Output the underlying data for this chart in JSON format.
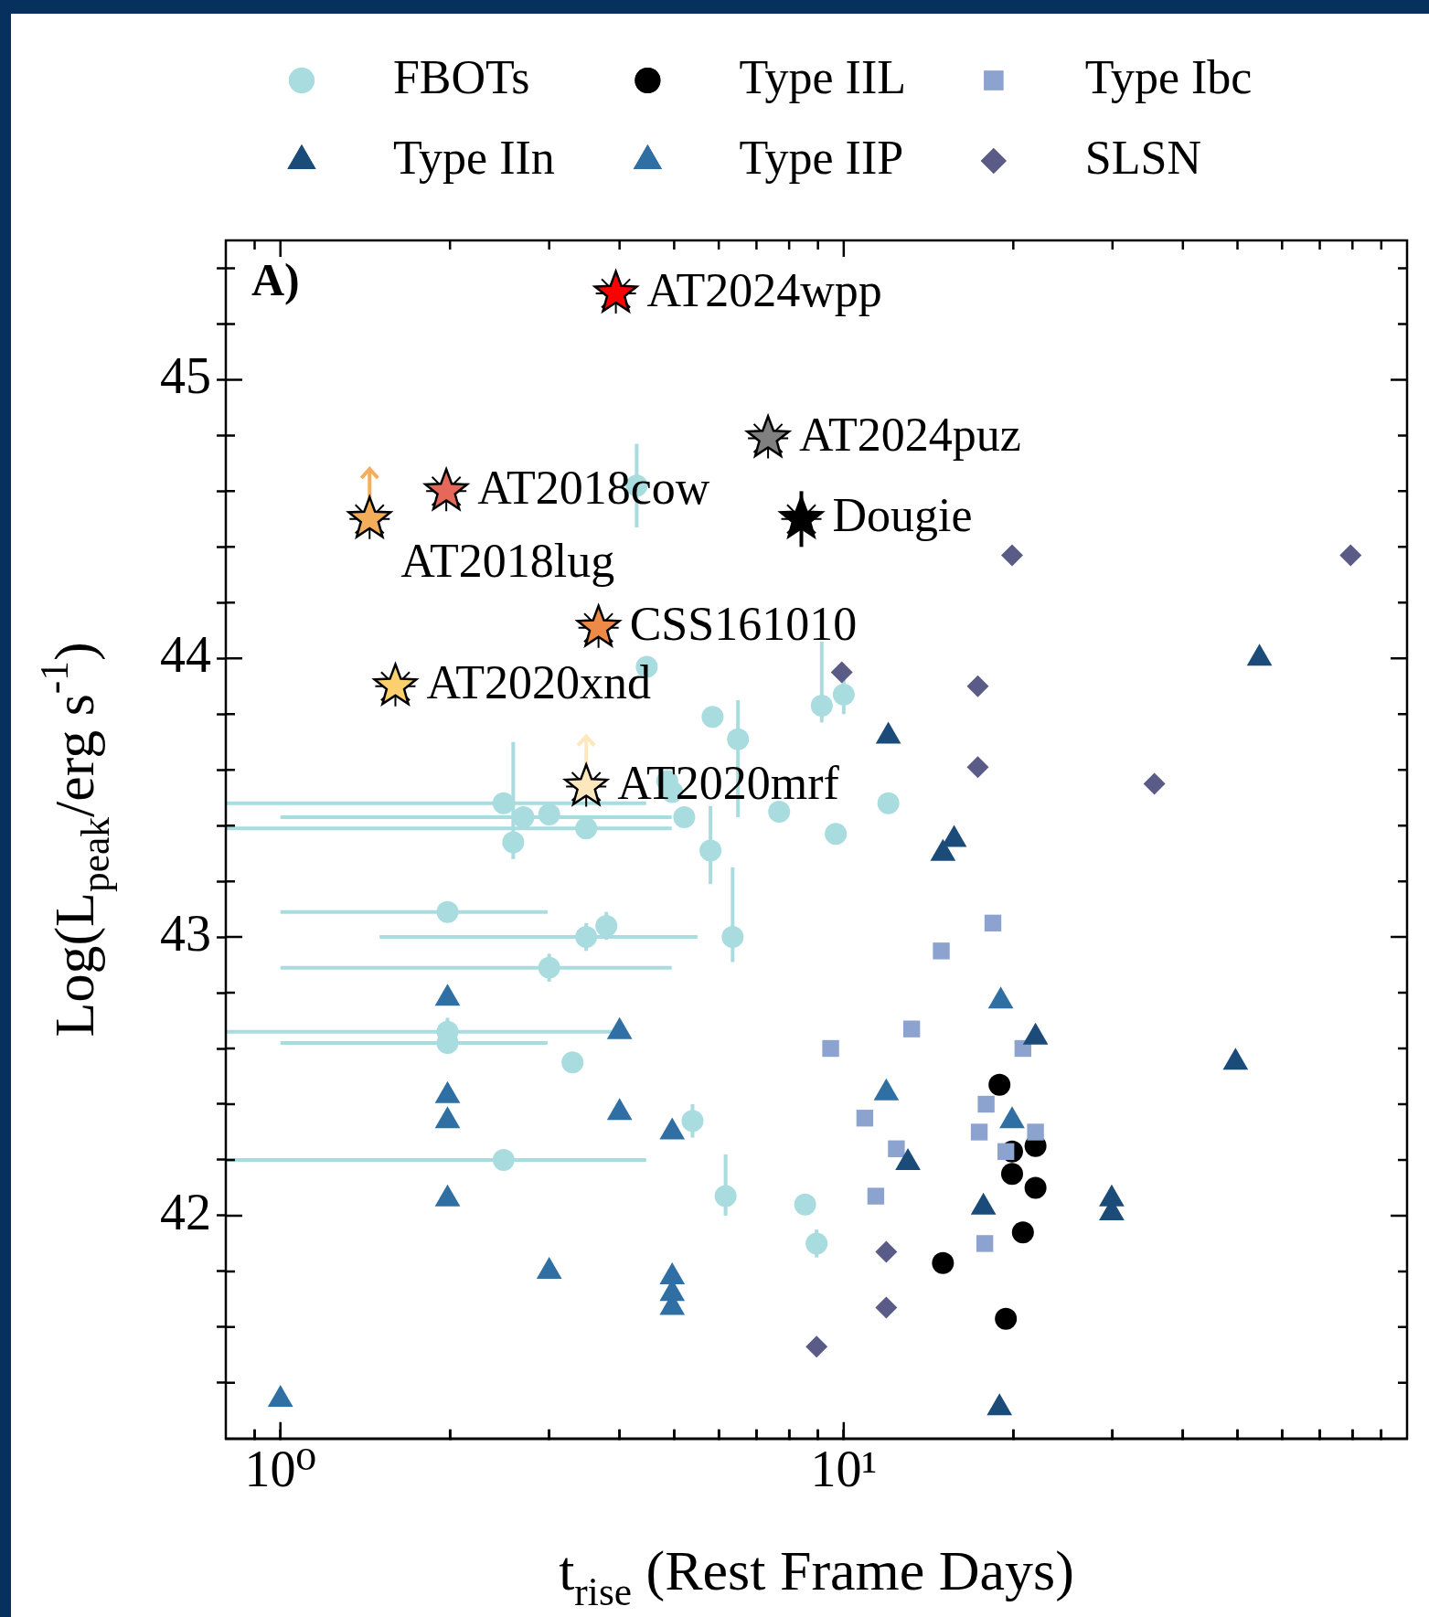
{
  "chart_data": {
    "type": "scatter",
    "xlabel": "t$_{rise}$ (Rest Frame Days)",
    "ylabel": "Log(L$_{peak}$/erg s$^{-1}$)",
    "log": "x",
    "legend": "top",
    "xlim": [
      0.8,
      100
    ],
    "ylim": [
      41.2,
      45.5
    ],
    "xticks": [
      {
        "value": 0.9,
        "label": null
      },
      {
        "value": 1,
        "label": "10⁰"
      },
      {
        "value": 2,
        "label": null
      },
      {
        "value": 3,
        "label": null
      },
      {
        "value": 4,
        "label": null
      },
      {
        "value": 5,
        "label": null
      },
      {
        "value": 6,
        "label": null
      },
      {
        "value": 7,
        "label": null
      },
      {
        "value": 8,
        "label": null
      },
      {
        "value": 9,
        "label": null
      },
      {
        "value": 10,
        "label": "10¹"
      },
      {
        "value": 20,
        "label": null
      },
      {
        "value": 30,
        "label": null
      },
      {
        "value": 40,
        "label": null
      },
      {
        "value": 50,
        "label": null
      },
      {
        "value": 60,
        "label": null
      },
      {
        "value": 70,
        "label": null
      },
      {
        "value": 80,
        "label": null
      },
      {
        "value": 90,
        "label": null
      }
    ],
    "yticks": [
      {
        "value": 41.4,
        "label": null
      },
      {
        "value": 41.6,
        "label": null
      },
      {
        "value": 41.8,
        "label": null
      },
      42,
      {
        "value": 42.2,
        "label": null
      },
      {
        "value": 42.4,
        "label": null
      },
      {
        "value": 42.6,
        "label": null
      },
      {
        "value": 42.8,
        "label": null
      },
      43,
      {
        "value": 43.2,
        "label": null
      },
      {
        "value": 43.4,
        "label": null
      },
      {
        "value": 43.6,
        "label": null
      },
      {
        "value": 43.8,
        "label": null
      },
      44,
      {
        "value": 44.2,
        "label": null
      },
      {
        "value": 44.4,
        "label": null
      },
      {
        "value": 44.6,
        "label": null
      },
      {
        "value": 44.8,
        "label": null
      },
      45,
      {
        "value": 45.2,
        "label": null
      },
      {
        "value": 45.4,
        "label": null
      }
    ],
    "series": [
      {
        "name": "FBOTs",
        "color": "#a8dcdf",
        "marker": "circle",
        "x": [
          4.29,
          4.47,
          9.14,
          10.0,
          5.85,
          6.49,
          4.86,
          4.96,
          5.21,
          7.68,
          12.0,
          9.68,
          5.8,
          6.35,
          2.49,
          2.59,
          2.7,
          3.0,
          3.49,
          1.98,
          3.79,
          3.49,
          3.0,
          1.98,
          1.98,
          3.3,
          2.49,
          5.39,
          6.17,
          8.54,
          8.95
        ],
        "values": [
          44.62,
          43.97,
          43.83,
          43.87,
          43.79,
          43.71,
          43.56,
          43.52,
          43.43,
          43.45,
          43.48,
          43.37,
          43.31,
          43.0,
          43.48,
          43.34,
          43.43,
          43.44,
          43.39,
          43.09,
          43.04,
          43.0,
          42.89,
          42.66,
          42.62,
          42.55,
          42.2,
          42.34,
          42.07,
          42.04,
          41.9
        ],
        "errors": [
          0.15,
          null,
          [
            43.77,
            44.06
          ],
          0.07,
          null,
          [
            43.43,
            43.85
          ],
          null,
          null,
          null,
          null,
          0.03,
          null,
          [
            43.19,
            43.47
          ],
          [
            42.91,
            43.25
          ],
          null,
          [
            43.28,
            43.7
          ],
          null,
          null,
          null,
          null,
          0.05,
          0.05,
          0.05,
          0.05,
          null,
          null,
          null,
          0.06,
          [
            42.0,
            42.22
          ],
          null,
          0.05
        ],
        "xerrors": [
          null,
          null,
          null,
          null,
          null,
          null,
          null,
          null,
          null,
          null,
          null,
          null,
          null,
          null,
          [
            0.8,
            4.46
          ],
          null,
          [
            1.0,
            4.95
          ],
          null,
          [
            0.8,
            4.95
          ],
          [
            1.0,
            2.98
          ],
          null,
          [
            1.5,
            5.5
          ],
          [
            1.0,
            4.95
          ],
          [
            0.8,
            3.88
          ],
          [
            1.0,
            2.98
          ],
          null,
          [
            0.8,
            4.46
          ],
          null,
          null,
          null,
          null
        ]
      },
      {
        "name": "Type IIL",
        "color": "#000000",
        "marker": "circle",
        "x": [
          18.9,
          19.9,
          21.9,
          19.9,
          21.9,
          20.8,
          15.0,
          19.4
        ],
        "values": [
          42.47,
          42.23,
          42.25,
          42.15,
          42.1,
          41.94,
          41.83,
          41.63
        ]
      },
      {
        "name": "Type Ibc",
        "color": "#8ca3cf",
        "marker": "square",
        "x": [
          18.4,
          14.9,
          13.2,
          9.48,
          20.8,
          17.9,
          10.9,
          17.4,
          21.9,
          12.4,
          19.4,
          11.4,
          17.8
        ],
        "values": [
          43.05,
          42.95,
          42.67,
          42.6,
          42.6,
          42.4,
          42.35,
          42.3,
          42.3,
          42.24,
          42.23,
          42.07,
          41.9
        ]
      },
      {
        "name": "Type IIn",
        "color": "#1b4c79",
        "marker": "triangle",
        "x": [
          54.7,
          12.0,
          15.7,
          15.0,
          49.6,
          21.9,
          13.0,
          17.7,
          29.9,
          29.9,
          18.9
        ],
        "values": [
          44.0,
          43.72,
          43.35,
          43.3,
          42.55,
          42.64,
          42.19,
          42.03,
          42.06,
          42.01,
          41.31
        ]
      },
      {
        "name": "Type IIP",
        "color": "#2f6fa3",
        "marker": "triangle",
        "x": [
          11.9,
          19.0,
          19.9,
          1.98,
          4.0,
          1.98,
          1.98,
          4.0,
          4.96,
          1.98,
          3.0,
          4.96,
          4.96,
          4.96,
          1.0
        ],
        "values": [
          42.44,
          42.77,
          42.34,
          42.78,
          42.66,
          42.43,
          42.34,
          42.37,
          42.3,
          42.06,
          41.8,
          41.78,
          41.72,
          41.67,
          41.34
        ]
      },
      {
        "name": "SLSN",
        "color": "#5b5b88",
        "marker": "diamond",
        "x": [
          19.9,
          79.4,
          9.92,
          17.3,
          17.3,
          35.6,
          11.9,
          11.9,
          8.95
        ],
        "values": [
          44.37,
          44.37,
          43.95,
          43.9,
          43.61,
          43.55,
          41.87,
          41.67,
          41.53
        ]
      },
      {
        "colors": [
          "#ff0000",
          "#808080",
          "#e5685a",
          "#000000",
          "#f4ad5a",
          "#ee8a48",
          "#fdd06e",
          "#fde8bd"
        ],
        "marker": "star",
        "x": [
          3.94,
          7.34,
          1.97,
          8.41,
          1.44,
          3.67,
          1.6,
          3.49
        ],
        "values": [
          45.31,
          44.79,
          44.6,
          44.5,
          44.5,
          44.11,
          43.9,
          43.54
        ],
        "errors": [
          null,
          null,
          null,
          0.1,
          [
            44.5,
            44.68
          ],
          null,
          null,
          [
            43.54,
            43.72
          ]
        ]
      }
    ],
    "annotations": [
      "A)",
      {
        "text": "AT2024wpp",
        "x": 3.94,
        "y": 45.31
      },
      {
        "text": "AT2024puz",
        "x": 7.34,
        "y": 44.79
      },
      {
        "text": "AT2018cow",
        "x": 1.97,
        "y": 44.6
      },
      {
        "text": "Dougie",
        "x": 8.41,
        "y": 44.5
      },
      {
        "text": "AT2018lug",
        "x": 1.44,
        "y": 44.5
      },
      {
        "text": "CSS161010",
        "x": 3.67,
        "y": 44.11
      },
      {
        "text": "AT2020xnd",
        "x": 1.6,
        "y": 43.9
      },
      {
        "text": "AT2020mrf",
        "x": 3.49,
        "y": 43.54
      }
    ]
  }
}
